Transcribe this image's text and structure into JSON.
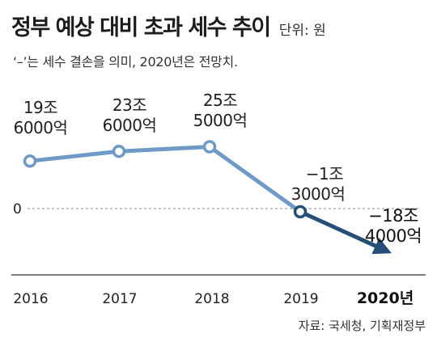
{
  "header": {
    "title": "정부 예상 대비 초과 세수 추이",
    "unit": "단위: 원",
    "note": "‘–’는 세수 결손을 의미, 2020년은 전망치."
  },
  "source": "자료: 국세청, 기획재정부",
  "colors": {
    "line_light": "#6f9ac6",
    "line_dark": "#254e78",
    "zero_line": "#888888"
  },
  "chart_data": {
    "type": "line",
    "title": "정부 예상 대비 초과 세수 추이",
    "unit": "원",
    "categories": [
      "2016",
      "2017",
      "2018",
      "2019",
      "2020년"
    ],
    "values_won": [
      19600000000000,
      23600000000000,
      25500000000000,
      -1300000000000,
      -18400000000000
    ],
    "values_jo": [
      19.6,
      23.6,
      25.5,
      -1.3,
      -18.4
    ],
    "labels": [
      [
        "19조",
        "6000억"
      ],
      [
        "23조",
        "6000억"
      ],
      [
        "25조",
        "5000억"
      ],
      [
        "−1조",
        "3000억"
      ],
      [
        "−18조",
        "4000억"
      ]
    ],
    "zero_label": "0",
    "projection_from": "2019",
    "grid": false,
    "legend": "none"
  }
}
